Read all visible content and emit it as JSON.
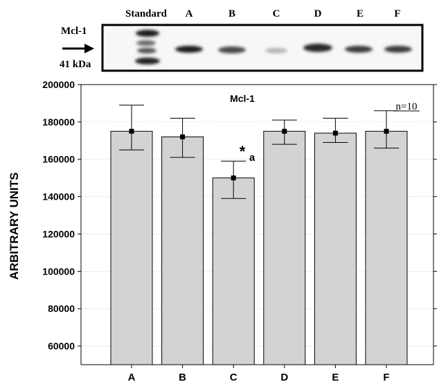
{
  "blot": {
    "lane_labels": [
      "Standard",
      "A",
      "B",
      "C",
      "D",
      "E",
      "F"
    ],
    "protein_label": "Mcl-1",
    "size_label": "41 kDa"
  },
  "chart_data": {
    "type": "bar",
    "title": "Mcl-1",
    "annotation_n": "n=10",
    "ylabel": "ARBITRARY UNITS",
    "xlabel": "",
    "ylim": [
      50000,
      200000
    ],
    "yticks": [
      60000,
      80000,
      100000,
      120000,
      140000,
      160000,
      180000,
      200000
    ],
    "categories": [
      "A",
      "B",
      "C",
      "D",
      "E",
      "F"
    ],
    "values": [
      175000,
      172000,
      150000,
      175000,
      174000,
      175000
    ],
    "error_upper": [
      189000,
      182000,
      159000,
      181000,
      182000,
      186000
    ],
    "error_lower": [
      165000,
      161000,
      139000,
      168000,
      169000,
      166000
    ],
    "significance": {
      "category": "C",
      "star": "*",
      "letter": "a"
    },
    "grid": true,
    "colors": {
      "bar_fill": "#d3d3d3",
      "bar_stroke": "#000000",
      "grid": "#b0b0b0"
    }
  }
}
